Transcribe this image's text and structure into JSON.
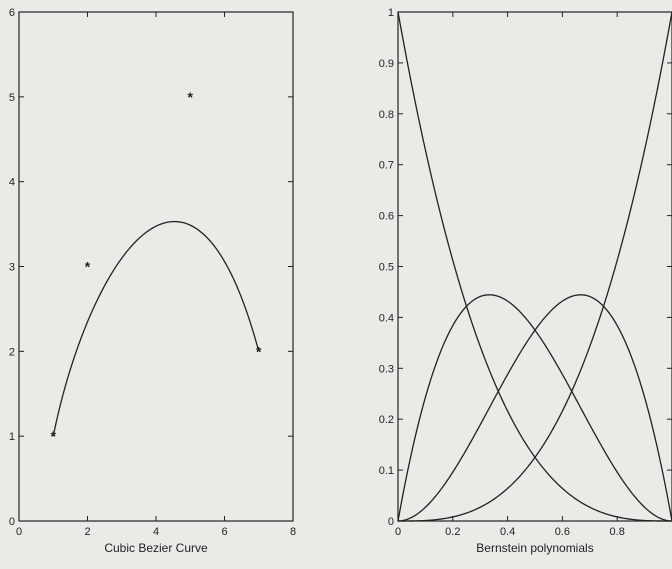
{
  "chart_data": [
    {
      "type": "line",
      "title": "",
      "xlabel": "Cubic Bezier Curve",
      "ylabel": "",
      "xlim": [
        0,
        8
      ],
      "ylim": [
        0,
        6
      ],
      "xticks": [
        0,
        2,
        4,
        6,
        8
      ],
      "yticks": [
        0,
        1,
        2,
        3,
        4,
        5,
        6
      ],
      "grid": false,
      "series": [
        {
          "kind": "scatter",
          "marker": "*",
          "x": [
            1,
            2,
            5,
            7
          ],
          "y": [
            1,
            3,
            5,
            2
          ]
        },
        {
          "kind": "line",
          "curve": "cubic-bezier",
          "control_points": [
            [
              1,
              1
            ],
            [
              2,
              3
            ],
            [
              5,
              5
            ],
            [
              7,
              2
            ]
          ]
        }
      ]
    },
    {
      "type": "line",
      "title": "",
      "xlabel": "Bernstein polynomials",
      "ylabel": "",
      "xlim": [
        0,
        1
      ],
      "ylim": [
        0,
        1
      ],
      "xticks": [
        0,
        0.2,
        0.4,
        0.6,
        0.8,
        1
      ],
      "xtick_labels": [
        "0",
        "0.2",
        "0.4",
        "0.6",
        "0.8",
        ""
      ],
      "yticks": [
        0,
        0.1,
        0.2,
        0.3,
        0.4,
        0.5,
        0.6,
        0.7,
        0.8,
        0.9,
        1
      ],
      "ytick_labels": [
        "0",
        "0.1",
        "0.2",
        "0.3",
        "0.4",
        "0.5",
        "0.6",
        "0.7",
        "0.8",
        "0.9",
        "1"
      ],
      "grid": false,
      "series": [
        {
          "function": "(1-t)^3"
        },
        {
          "function": "3t(1-t)^2"
        },
        {
          "function": "3t^2(1-t)"
        },
        {
          "function": "t^3"
        }
      ]
    }
  ]
}
